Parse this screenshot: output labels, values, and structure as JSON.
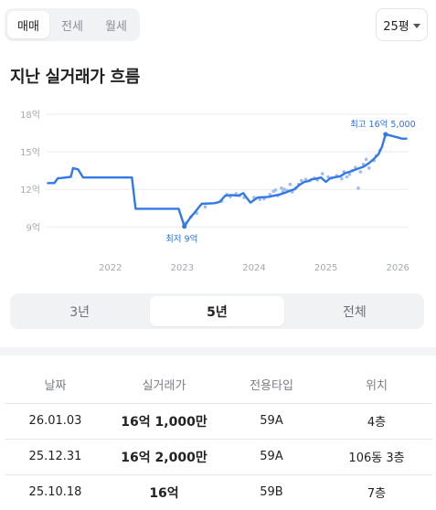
{
  "deal_tabs": [
    "매매",
    "전세",
    "월세"
  ],
  "deal_tab_active": 0,
  "area_select": {
    "value": "25평"
  },
  "section_title": "지난 실거래가 흐름",
  "chart_data": {
    "type": "line",
    "title": "",
    "xlabel": "",
    "ylabel": "",
    "y_ticks": [
      {
        "value": 9,
        "label": "9억"
      },
      {
        "value": 12,
        "label": "12억"
      },
      {
        "value": 15,
        "label": "15억"
      },
      {
        "value": 18,
        "label": "18억"
      }
    ],
    "x_ticks": [
      {
        "value": 2022.0,
        "label": "2022"
      },
      {
        "value": 2023.0,
        "label": "2023"
      },
      {
        "value": 2024.0,
        "label": "2024"
      },
      {
        "value": 2025.0,
        "label": "2025"
      },
      {
        "value": 2026.0,
        "label": "2026"
      }
    ],
    "xlim": [
      2021.1,
      2026.15
    ],
    "ylim": [
      8,
      18
    ],
    "grid": true,
    "series": [
      {
        "kind": "trend",
        "x": [
          2021.13,
          2021.22,
          2021.27,
          2021.3,
          2021.45,
          2021.48,
          2021.55,
          2021.62,
          2021.66,
          2021.9,
          2022.3,
          2022.35,
          2022.7,
          2022.95,
          2023.03,
          2023.07,
          2023.12,
          2023.18,
          2023.27,
          2023.45,
          2023.52,
          2023.6,
          2023.68,
          2023.78,
          2023.85,
          2023.9,
          2023.95,
          2024.05,
          2024.2,
          2024.28,
          2024.36,
          2024.44,
          2024.5,
          2024.56,
          2024.63,
          2024.7,
          2024.75,
          2024.8,
          2024.86,
          2024.93,
          2025.0,
          2025.06,
          2025.2,
          2025.27,
          2025.33,
          2025.42,
          2025.52,
          2025.6,
          2025.66,
          2025.73,
          2025.78,
          2025.83,
          2025.9,
          2026.06,
          2026.12
        ],
        "y": [
          12.5,
          12.5,
          12.9,
          12.9,
          13.0,
          13.7,
          13.6,
          12.95,
          12.95,
          12.95,
          12.95,
          10.45,
          10.45,
          10.45,
          9.05,
          9.4,
          9.8,
          10.2,
          10.85,
          10.9,
          11.0,
          11.5,
          11.55,
          11.5,
          11.7,
          11.3,
          10.95,
          11.35,
          11.4,
          11.5,
          11.6,
          11.75,
          11.9,
          12.0,
          12.35,
          12.6,
          12.65,
          12.8,
          12.85,
          12.95,
          12.6,
          12.9,
          13.05,
          13.3,
          13.4,
          13.6,
          13.8,
          14.1,
          14.4,
          14.8,
          15.4,
          16.4,
          16.3,
          16.05,
          16.05
        ]
      }
    ],
    "scatter": {
      "x": [
        2023.05,
        2023.12,
        2023.2,
        2023.32,
        2023.55,
        2023.62,
        2023.67,
        2023.75,
        2023.8,
        2023.86,
        2024.0,
        2024.08,
        2024.14,
        2024.22,
        2024.27,
        2024.3,
        2024.33,
        2024.38,
        2024.4,
        2024.42,
        2024.46,
        2024.5,
        2024.53,
        2024.58,
        2024.62,
        2024.66,
        2024.72,
        2024.78,
        2024.84,
        2024.88,
        2024.95,
        2025.03,
        2025.08,
        2025.15,
        2025.22,
        2025.25,
        2025.29,
        2025.33,
        2025.37,
        2025.41,
        2025.45,
        2025.48,
        2025.52,
        2025.56,
        2025.6,
        2025.67,
        2025.7,
        2025.75
      ],
      "y": [
        9.3,
        9.8,
        10.1,
        10.6,
        11.05,
        11.6,
        11.4,
        11.65,
        11.5,
        11.35,
        11.35,
        11.2,
        11.25,
        11.6,
        11.85,
        11.95,
        11.5,
        12.1,
        11.8,
        12.0,
        11.9,
        12.4,
        11.8,
        12.1,
        12.4,
        12.7,
        12.8,
        12.7,
        12.9,
        12.75,
        13.25,
        13.0,
        12.9,
        13.1,
        12.85,
        13.4,
        13.0,
        13.2,
        13.5,
        13.75,
        12.1,
        13.4,
        14.0,
        14.4,
        13.7,
        14.3,
        14.7,
        15.1
      ]
    },
    "annotations": [
      {
        "label": "최저 9억",
        "x": 2023.03,
        "y": 9.05,
        "position": "below"
      },
      {
        "label": "최고 16억 5,000",
        "x": 2025.83,
        "y": 16.4,
        "position": "above"
      }
    ],
    "colors": {
      "line": "#3378e6",
      "point": "#9bbcf1",
      "grid": "#e9ebee",
      "axis_text": "#a4a8ae",
      "annotation_text": "#2f6fd6"
    }
  },
  "period_tabs": [
    "3년",
    "5년",
    "전체"
  ],
  "period_tab_active": 1,
  "table": {
    "headers": [
      "날짜",
      "실거래가",
      "전용타입",
      "위치"
    ],
    "rows": [
      {
        "date": "26.01.03",
        "price": "16억 1,000만",
        "type": "59A",
        "location": "4층"
      },
      {
        "date": "25.12.31",
        "price": "16억 2,000만",
        "type": "59A",
        "location": "106동 3층"
      },
      {
        "date": "25.10.18",
        "price": "16억",
        "type": "59B",
        "location": "7층"
      }
    ]
  }
}
